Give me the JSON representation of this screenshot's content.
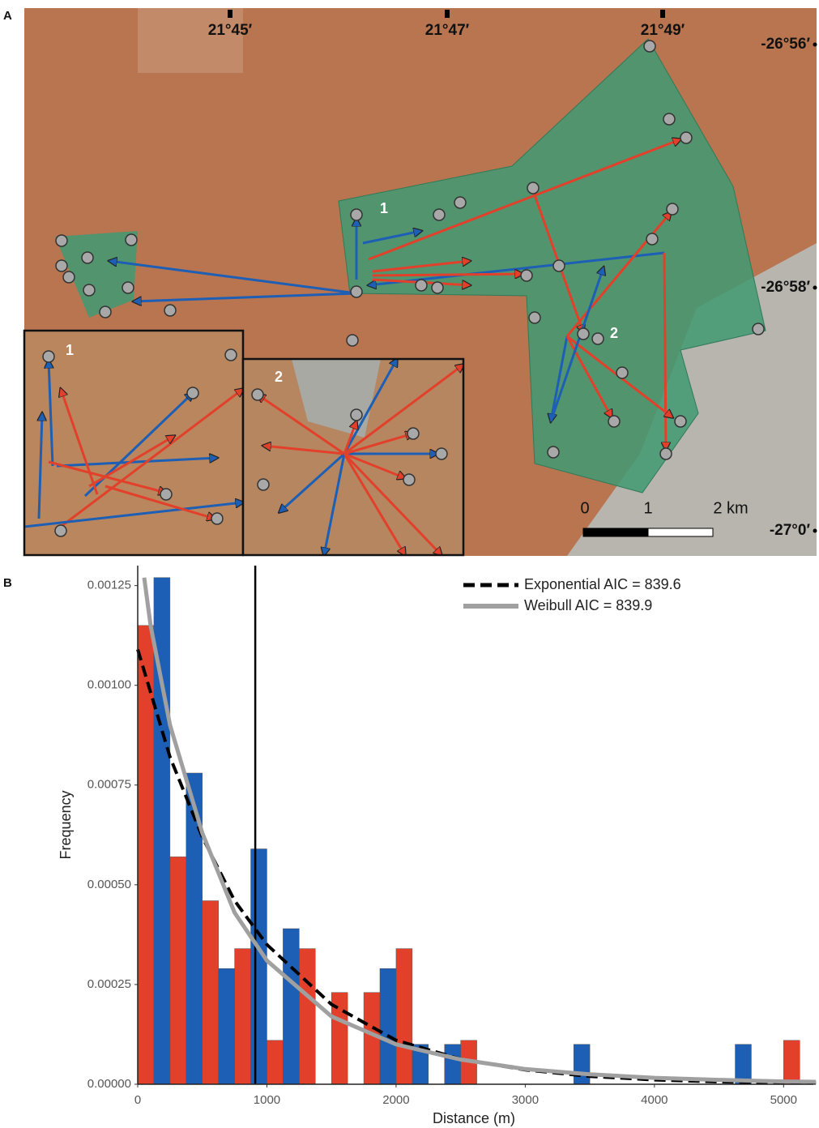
{
  "map": {
    "panel_label": "A",
    "lon_labels": [
      "21°45′",
      "21°47′",
      "21°49′"
    ],
    "lat_labels": [
      "-26°56′",
      "-26°58′",
      "-27°0′"
    ],
    "scale_labels": [
      "0",
      "1",
      "2 km"
    ],
    "site_labels": [
      "1",
      "2"
    ],
    "inset_labels": [
      "1",
      "2"
    ]
  },
  "chart_data": {
    "type": "grouped-histogram",
    "panel_label": "B",
    "xlabel": "Distance (m)",
    "ylabel": "Frequency",
    "bins": [
      0,
      250,
      500,
      750,
      1000,
      1250,
      1500,
      1750,
      2000,
      2250,
      2500,
      2750,
      3000,
      3250,
      3500,
      3750,
      4000,
      4250,
      4500,
      4750,
      5000,
      5250
    ],
    "series": [
      {
        "color": "#e2402a",
        "values": [
          0.00115,
          0.00057,
          0.00046,
          0.00034,
          0.00011,
          0.00034,
          0.00023,
          0.00023,
          0.00034,
          0,
          0.00011,
          0,
          0,
          0,
          0,
          0,
          0,
          0,
          0,
          0,
          0.00011
        ]
      },
      {
        "color": "#1d5fb5",
        "values": [
          0.00127,
          0.00078,
          0.00029,
          0.00059,
          0.00039,
          0,
          0,
          0.00029,
          0.0001,
          0.0001,
          0,
          0,
          0,
          0.0001,
          0,
          0,
          0,
          0,
          0.0001,
          0,
          0
        ]
      }
    ],
    "lines": [
      {
        "name": "Exponential AIC = 839.6",
        "color": "#000000",
        "dash": true,
        "x": [
          0,
          250,
          500,
          750,
          1000,
          1500,
          2000,
          2500,
          3000,
          3500,
          4000,
          4500,
          5000,
          5250
        ],
        "values": [
          0.00109,
          0.00082,
          0.00062,
          0.00046,
          0.00035,
          0.0002,
          0.00011,
          6.3e-05,
          3.6e-05,
          2e-05,
          1.1e-05,
          6e-06,
          4e-06,
          3e-06
        ]
      },
      {
        "name": "Weibull AIC = 839.9",
        "color": "#a0a0a0",
        "dash": false,
        "x": [
          50,
          100,
          250,
          500,
          750,
          1000,
          1500,
          2000,
          2500,
          3000,
          3500,
          4000,
          4500,
          5000,
          5250
        ],
        "values": [
          0.00127,
          0.00115,
          0.0009,
          0.00063,
          0.00043,
          0.00031,
          0.00017,
          0.0001,
          6.2e-05,
          3.8e-05,
          2.5e-05,
          1.6e-05,
          1.1e-05,
          7e-06,
          6e-06
        ]
      }
    ],
    "vline": 910,
    "xlim": [
      0,
      5230
    ],
    "ylim": [
      0,
      0.0013
    ],
    "xticks": [
      0,
      1000,
      2000,
      3000,
      4000,
      5000
    ],
    "yticks": [
      {
        "value": 0,
        "label": "0.00000"
      },
      {
        "value": 0.00025,
        "label": "0.00025"
      },
      {
        "value": 0.0005,
        "label": "0.00050"
      },
      {
        "value": 0.00075,
        "label": "0.00075"
      },
      {
        "value": 0.001,
        "label": "0.00100"
      },
      {
        "value": 0.00125,
        "label": "0.00125"
      }
    ],
    "grid": false
  }
}
